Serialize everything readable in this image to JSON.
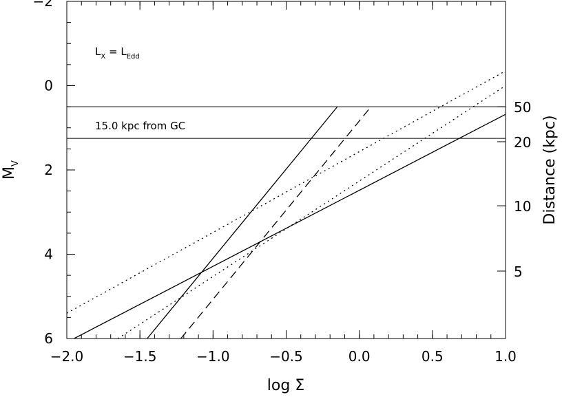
{
  "chart_data": {
    "type": "line",
    "xlabel": "log Σ",
    "ylabel_main": "M",
    "ylabel_sub": "V",
    "y2label": "Distance (kpc)",
    "xlim": [
      -2.0,
      1.0
    ],
    "ylim": [
      6.0,
      -2.0
    ],
    "x_ticks": [
      -2.0,
      -1.5,
      -1.0,
      -0.5,
      0.0,
      0.5,
      1.0
    ],
    "x_tick_labels": [
      "−2.0",
      "−1.5",
      "−1.0",
      "−0.5",
      "0.0",
      "0.5",
      "1.0"
    ],
    "y_ticks": [
      -2,
      0,
      2,
      4,
      6
    ],
    "y_tick_labels": [
      "−2",
      "0",
      "2",
      "4",
      "6"
    ],
    "y2_ticks": [
      {
        "label": "50",
        "mv": 0.5
      },
      {
        "label": "20",
        "mv": 1.33
      },
      {
        "label": "10",
        "mv": 2.85
      },
      {
        "label": "5",
        "mv": 4.4
      }
    ],
    "hlines": [
      {
        "y": 0.5,
        "label_main": "L",
        "label_main_sub": "X",
        "label_mid": " = L",
        "label_end_sub": "Edd"
      },
      {
        "y": 1.25,
        "label": "15.0 kpc from GC"
      }
    ],
    "series": [
      {
        "style": "solid",
        "points": [
          [
            -1.95,
            6.0
          ],
          [
            1.0,
            0.68
          ]
        ]
      },
      {
        "style": "dotted",
        "points": [
          [
            -2.0,
            5.4
          ],
          [
            1.0,
            -0.35
          ]
        ]
      },
      {
        "style": "dotted",
        "points": [
          [
            -1.65,
            6.0
          ],
          [
            1.0,
            0.0
          ]
        ]
      },
      {
        "style": "solid",
        "points": [
          [
            -1.45,
            6.0
          ],
          [
            -0.15,
            0.5
          ]
        ]
      },
      {
        "style": "dashed",
        "points": [
          [
            -1.22,
            6.0
          ],
          [
            0.08,
            0.5
          ]
        ]
      }
    ]
  }
}
